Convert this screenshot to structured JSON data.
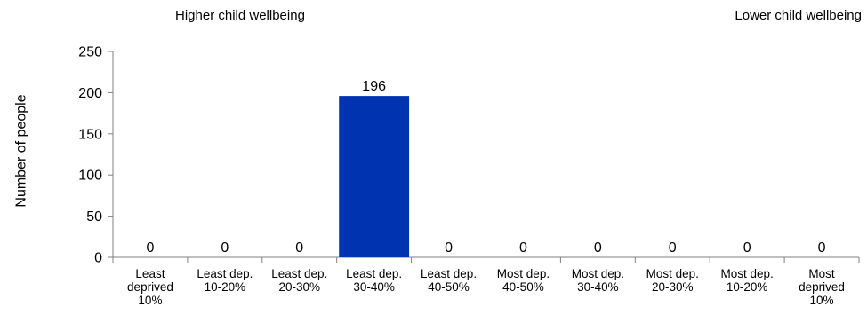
{
  "chart_data": {
    "type": "bar",
    "categories": [
      "Least deprived 10%",
      "Least dep. 10-20%",
      "Least dep. 20-30%",
      "Least dep. 30-40%",
      "Least dep. 40-50%",
      "Most dep. 40-50%",
      "Most dep. 30-40%",
      "Most dep. 20-30%",
      "Most dep. 10-20%",
      "Most deprived 10%"
    ],
    "category_lines": [
      [
        "Least",
        "deprived",
        "10%"
      ],
      [
        "Least dep.",
        "10-20%"
      ],
      [
        "Least dep.",
        "20-30%"
      ],
      [
        "Least dep.",
        "30-40%"
      ],
      [
        "Least dep.",
        "40-50%"
      ],
      [
        "Most dep.",
        "40-50%"
      ],
      [
        "Most dep.",
        "30-40%"
      ],
      [
        "Most dep.",
        "20-30%"
      ],
      [
        "Most dep.",
        "10-20%"
      ],
      [
        "Most",
        "deprived",
        "10%"
      ]
    ],
    "values": [
      0,
      0,
      0,
      196,
      0,
      0,
      0,
      0,
      0,
      0
    ],
    "data_labels": [
      "0",
      "0",
      "0",
      "196",
      "0",
      "0",
      "0",
      "0",
      "0",
      "0"
    ],
    "ylabel": "Number of people",
    "xlabel": "",
    "ylim": [
      0,
      250
    ],
    "yticks": [
      0,
      50,
      100,
      150,
      200,
      250
    ],
    "grid": false,
    "bar_color": "#0033B0",
    "axis_color": "#808080"
  },
  "annotations": {
    "left": "Higher child wellbeing",
    "right": "Lower child wellbeing"
  }
}
